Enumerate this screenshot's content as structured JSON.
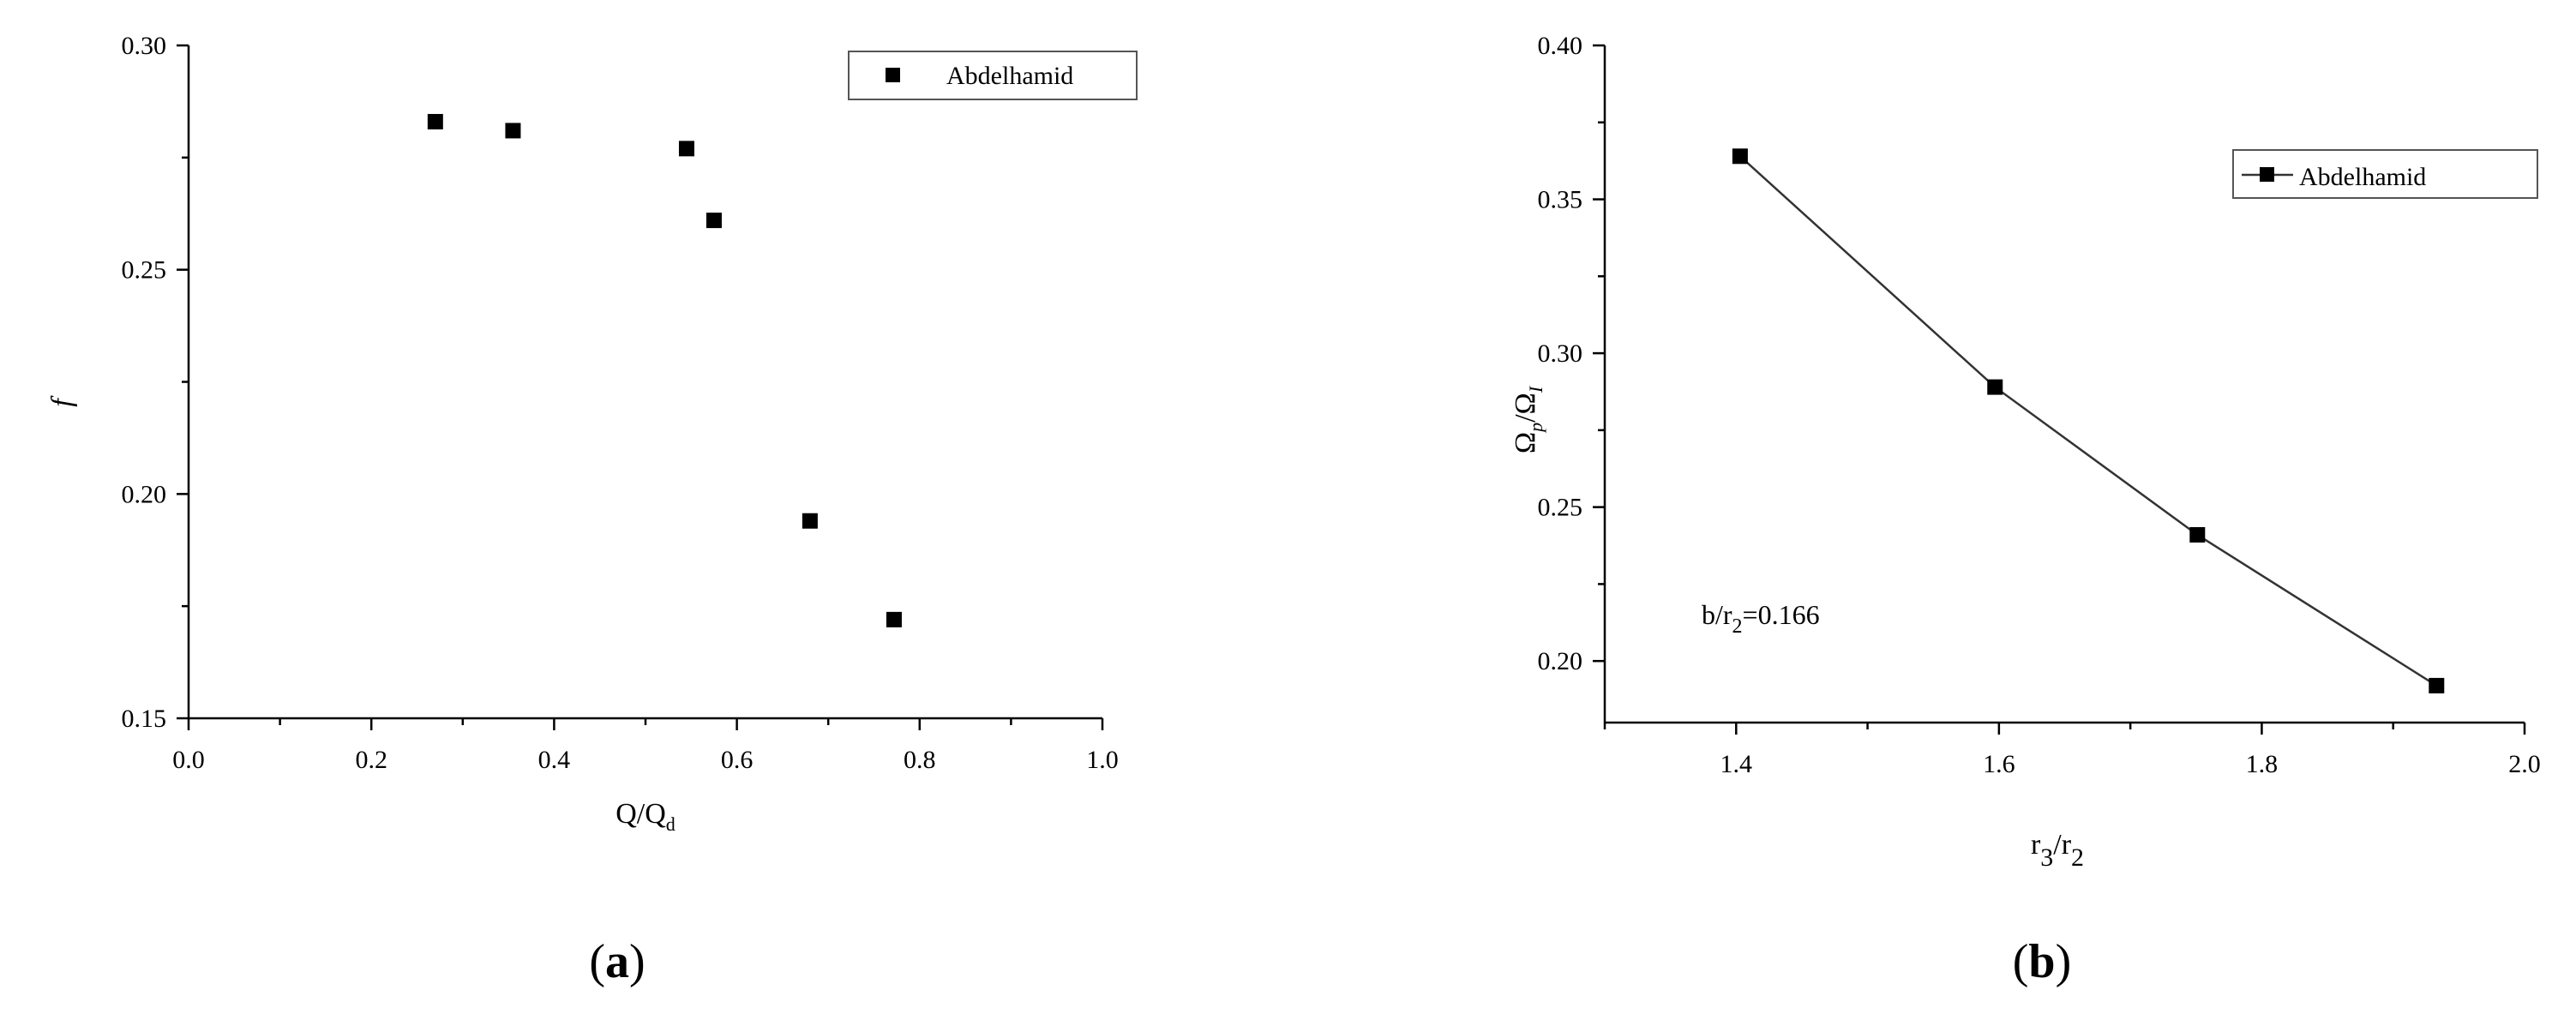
{
  "chart_data": [
    {
      "type": "scatter",
      "panel_label": {
        "open": "(",
        "letter": "a",
        "close": ")"
      },
      "ylabel": "f",
      "xlabel": {
        "main": "Q/Q",
        "sub": "d"
      },
      "xlim": [
        0.0,
        1.0
      ],
      "ylim": [
        0.15,
        0.3
      ],
      "xticks": [
        "0.0",
        "0.2",
        "0.4",
        "0.6",
        "0.8",
        "1.0"
      ],
      "yticks": [
        "0.15",
        "0.20",
        "0.25",
        "0.30"
      ],
      "legend": {
        "position": "top-right"
      },
      "series": [
        {
          "name": "Abdelhamid",
          "x": [
            0.27,
            0.355,
            0.545,
            0.575,
            0.68,
            0.772
          ],
          "y": [
            0.283,
            0.281,
            0.277,
            0.261,
            0.194,
            0.172
          ]
        }
      ]
    },
    {
      "type": "line",
      "panel_label": {
        "open": "(",
        "letter": "b",
        "close": ")"
      },
      "ylabel": {
        "a": "Ω",
        "a_sub": "p",
        "slash": "/",
        "b": "Ω",
        "b_sub": "I"
      },
      "xlabel": {
        "a": "r",
        "a_sub": "3",
        "slash": "/",
        "b": "r",
        "b_sub": "2"
      },
      "annotation": {
        "main": "b/r",
        "sub": "2",
        "rest": "=0.166"
      },
      "xlim": [
        1.3,
        2.0
      ],
      "ylim": [
        0.18,
        0.4
      ],
      "xticks": [
        "1.4",
        "1.6",
        "1.8",
        "2.0"
      ],
      "yticks": [
        "0.20",
        "0.25",
        "0.30",
        "0.35",
        "0.40"
      ],
      "legend": {
        "position": "top-right"
      },
      "series": [
        {
          "name": "Abdelhamid",
          "x": [
            1.403,
            1.597,
            1.751,
            1.933
          ],
          "y": [
            0.364,
            0.289,
            0.241,
            0.192
          ]
        }
      ]
    }
  ]
}
